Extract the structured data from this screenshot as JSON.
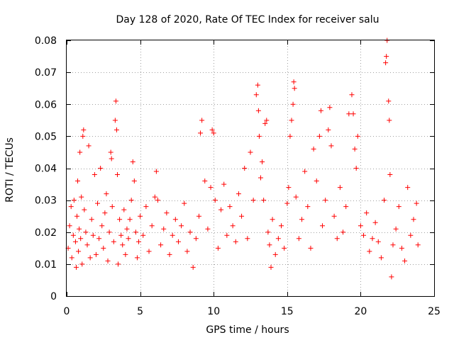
{
  "chart_data": {
    "type": "scatter",
    "title": "Day 128 of 2020, Rate Of TEC Index for receiver salu",
    "xlabel": "GPS time / hours",
    "ylabel": "ROTI / TECUs",
    "xlim": [
      0,
      25
    ],
    "ylim": [
      0,
      0.08
    ],
    "x_ticks": [
      0,
      5,
      10,
      15,
      20,
      25
    ],
    "x_tick_labels": [
      "0",
      "5",
      "10",
      "15",
      "20",
      "25"
    ],
    "y_ticks": [
      0,
      0.01,
      0.02,
      0.03,
      0.04,
      0.05,
      0.06,
      0.07,
      0.08
    ],
    "y_tick_labels": [
      "0",
      "0.01",
      "0.02",
      "0.03",
      "0.04",
      "0.05",
      "0.06",
      "0.07",
      "0.08"
    ],
    "grid": true,
    "marker": "+",
    "marker_color": "#ff0000",
    "series": [
      {
        "name": "ROTI",
        "points": [
          [
            0.1,
            0.015
          ],
          [
            0.2,
            0.022
          ],
          [
            0.3,
            0.028
          ],
          [
            0.35,
            0.012
          ],
          [
            0.45,
            0.019
          ],
          [
            0.5,
            0.03
          ],
          [
            0.6,
            0.017
          ],
          [
            0.65,
            0.009
          ],
          [
            0.7,
            0.025
          ],
          [
            0.75,
            0.036
          ],
          [
            0.8,
            0.014
          ],
          [
            0.85,
            0.021
          ],
          [
            0.9,
            0.045
          ],
          [
            0.95,
            0.018
          ],
          [
            1.0,
            0.031
          ],
          [
            1.05,
            0.01
          ],
          [
            1.1,
            0.05
          ],
          [
            1.15,
            0.052
          ],
          [
            1.2,
            0.027
          ],
          [
            1.3,
            0.02
          ],
          [
            1.4,
            0.016
          ],
          [
            1.5,
            0.047
          ],
          [
            1.6,
            0.012
          ],
          [
            1.7,
            0.024
          ],
          [
            1.8,
            0.019
          ],
          [
            1.9,
            0.038
          ],
          [
            2.0,
            0.013
          ],
          [
            2.1,
            0.029
          ],
          [
            2.2,
            0.018
          ],
          [
            2.3,
            0.04
          ],
          [
            2.4,
            0.022
          ],
          [
            2.5,
            0.015
          ],
          [
            2.6,
            0.026
          ],
          [
            2.7,
            0.032
          ],
          [
            2.8,
            0.011
          ],
          [
            2.9,
            0.02
          ],
          [
            3.0,
            0.045
          ],
          [
            3.05,
            0.043
          ],
          [
            3.1,
            0.028
          ],
          [
            3.2,
            0.017
          ],
          [
            3.3,
            0.055
          ],
          [
            3.35,
            0.061
          ],
          [
            3.4,
            0.052
          ],
          [
            3.45,
            0.038
          ],
          [
            3.5,
            0.01
          ],
          [
            3.6,
            0.024
          ],
          [
            3.7,
            0.019
          ],
          [
            3.8,
            0.016
          ],
          [
            3.9,
            0.027
          ],
          [
            4.0,
            0.013
          ],
          [
            4.1,
            0.021
          ],
          [
            4.2,
            0.018
          ],
          [
            4.3,
            0.024
          ],
          [
            4.4,
            0.03
          ],
          [
            4.5,
            0.042
          ],
          [
            4.6,
            0.036
          ],
          [
            4.7,
            0.02
          ],
          [
            4.8,
            0.012
          ],
          [
            4.9,
            0.017
          ],
          [
            5.0,
            0.025
          ],
          [
            5.2,
            0.019
          ],
          [
            5.4,
            0.028
          ],
          [
            5.6,
            0.014
          ],
          [
            5.8,
            0.022
          ],
          [
            6.0,
            0.031
          ],
          [
            6.1,
            0.039
          ],
          [
            6.2,
            0.03
          ],
          [
            6.4,
            0.016
          ],
          [
            6.6,
            0.021
          ],
          [
            6.8,
            0.026
          ],
          [
            7.0,
            0.013
          ],
          [
            7.2,
            0.019
          ],
          [
            7.4,
            0.024
          ],
          [
            7.6,
            0.017
          ],
          [
            7.8,
            0.022
          ],
          [
            8.0,
            0.029
          ],
          [
            8.2,
            0.014
          ],
          [
            8.4,
            0.02
          ],
          [
            8.6,
            0.009
          ],
          [
            8.8,
            0.018
          ],
          [
            9.0,
            0.025
          ],
          [
            9.1,
            0.051
          ],
          [
            9.2,
            0.055
          ],
          [
            9.4,
            0.036
          ],
          [
            9.6,
            0.021
          ],
          [
            9.8,
            0.034
          ],
          [
            9.9,
            0.052
          ],
          [
            10.0,
            0.051
          ],
          [
            10.1,
            0.03
          ],
          [
            10.3,
            0.015
          ],
          [
            10.5,
            0.027
          ],
          [
            10.7,
            0.035
          ],
          [
            10.9,
            0.019
          ],
          [
            11.1,
            0.028
          ],
          [
            11.3,
            0.022
          ],
          [
            11.5,
            0.017
          ],
          [
            11.7,
            0.032
          ],
          [
            11.9,
            0.025
          ],
          [
            12.1,
            0.04
          ],
          [
            12.3,
            0.018
          ],
          [
            12.5,
            0.045
          ],
          [
            12.7,
            0.03
          ],
          [
            12.9,
            0.063
          ],
          [
            13.0,
            0.066
          ],
          [
            13.05,
            0.058
          ],
          [
            13.1,
            0.05
          ],
          [
            13.2,
            0.037
          ],
          [
            13.3,
            0.042
          ],
          [
            13.4,
            0.03
          ],
          [
            13.5,
            0.054
          ],
          [
            13.6,
            0.055
          ],
          [
            13.7,
            0.02
          ],
          [
            13.8,
            0.016
          ],
          [
            13.9,
            0.009
          ],
          [
            14.0,
            0.024
          ],
          [
            14.2,
            0.013
          ],
          [
            14.4,
            0.018
          ],
          [
            14.6,
            0.022
          ],
          [
            14.8,
            0.015
          ],
          [
            15.0,
            0.029
          ],
          [
            15.1,
            0.034
          ],
          [
            15.2,
            0.05
          ],
          [
            15.3,
            0.055
          ],
          [
            15.4,
            0.06
          ],
          [
            15.45,
            0.067
          ],
          [
            15.5,
            0.065
          ],
          [
            15.6,
            0.031
          ],
          [
            15.8,
            0.018
          ],
          [
            16.0,
            0.024
          ],
          [
            16.2,
            0.039
          ],
          [
            16.4,
            0.028
          ],
          [
            16.6,
            0.015
          ],
          [
            16.8,
            0.046
          ],
          [
            17.0,
            0.036
          ],
          [
            17.2,
            0.05
          ],
          [
            17.3,
            0.058
          ],
          [
            17.4,
            0.022
          ],
          [
            17.6,
            0.03
          ],
          [
            17.8,
            0.052
          ],
          [
            17.9,
            0.059
          ],
          [
            18.0,
            0.047
          ],
          [
            18.2,
            0.025
          ],
          [
            18.4,
            0.018
          ],
          [
            18.6,
            0.034
          ],
          [
            18.8,
            0.02
          ],
          [
            19.0,
            0.028
          ],
          [
            19.2,
            0.057
          ],
          [
            19.4,
            0.063
          ],
          [
            19.5,
            0.057
          ],
          [
            19.6,
            0.046
          ],
          [
            19.7,
            0.04
          ],
          [
            19.8,
            0.05
          ],
          [
            20.0,
            0.022
          ],
          [
            20.2,
            0.019
          ],
          [
            20.4,
            0.026
          ],
          [
            20.6,
            0.014
          ],
          [
            20.8,
            0.018
          ],
          [
            21.0,
            0.023
          ],
          [
            21.2,
            0.017
          ],
          [
            21.4,
            0.012
          ],
          [
            21.6,
            0.03
          ],
          [
            21.7,
            0.073
          ],
          [
            21.75,
            0.075
          ],
          [
            21.8,
            0.08
          ],
          [
            21.9,
            0.061
          ],
          [
            21.95,
            0.055
          ],
          [
            22.0,
            0.038
          ],
          [
            22.1,
            0.006
          ],
          [
            22.2,
            0.016
          ],
          [
            22.4,
            0.021
          ],
          [
            22.6,
            0.028
          ],
          [
            22.8,
            0.015
          ],
          [
            23.0,
            0.011
          ],
          [
            23.2,
            0.034
          ],
          [
            23.4,
            0.019
          ],
          [
            23.6,
            0.024
          ],
          [
            23.8,
            0.029
          ],
          [
            23.9,
            0.016
          ]
        ]
      }
    ]
  }
}
